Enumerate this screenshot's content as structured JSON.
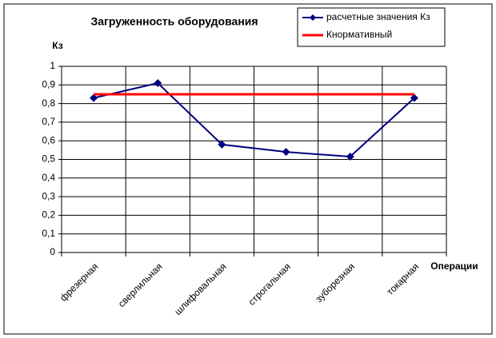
{
  "chart_data": {
    "type": "line",
    "title": "Загруженность оборудования",
    "y_label": "Кз",
    "x_label": "Операции",
    "categories": [
      "фрезерная",
      "сверлильная",
      "шлифовальная",
      "строгальная",
      "зуборезная",
      "токарная"
    ],
    "series": [
      {
        "name": "расчетные значения Кз",
        "color": "#000080",
        "marker": "diamond",
        "values": [
          0.83,
          0.91,
          0.58,
          0.54,
          0.515,
          0.83
        ]
      },
      {
        "name": "Кнормативный",
        "color": "#ff0000",
        "values": [
          0.85,
          0.85,
          0.85,
          0.85,
          0.85,
          0.85
        ]
      }
    ],
    "ylim": [
      0,
      1
    ],
    "yticks": [
      0,
      {
        "value": 0.1,
        "label": "0,1"
      },
      {
        "value": 0.2,
        "label": "0,2"
      },
      {
        "value": 0.3,
        "label": "0,3"
      },
      {
        "value": 0.4,
        "label": "0,4"
      },
      {
        "value": 0.5,
        "label": "0,5"
      },
      {
        "value": 0.6,
        "label": "0,6"
      },
      {
        "value": 0.7,
        "label": "0,7"
      },
      {
        "value": 0.8,
        "label": "0,8"
      },
      {
        "value": 0.9,
        "label": "0,9"
      },
      1
    ],
    "grid": true,
    "legend": "upper-right"
  }
}
